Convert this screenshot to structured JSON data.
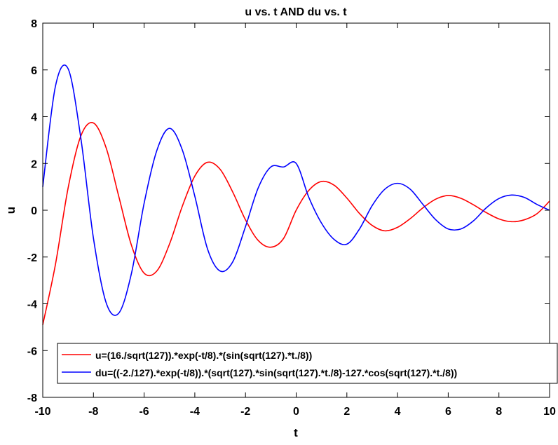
{
  "chart_data": {
    "type": "line",
    "title": "u vs. t AND du vs. t",
    "xlabel": "t",
    "ylabel": "u",
    "xlim": [
      -10,
      10
    ],
    "ylim": [
      -8,
      8
    ],
    "xticks": [
      -10,
      -8,
      -6,
      -4,
      -2,
      0,
      2,
      4,
      6,
      8,
      10
    ],
    "yticks": [
      -8,
      -6,
      -4,
      -2,
      0,
      2,
      4,
      6,
      8
    ],
    "xtick_labels": [
      "-10",
      "-8",
      "-6",
      "-4",
      "-2",
      "0",
      "2",
      "4",
      "6",
      "8",
      "10"
    ],
    "ytick_labels": [
      "-8",
      "-6",
      "-4",
      "-2",
      "0",
      "2",
      "4",
      "6",
      "8"
    ],
    "grid": false,
    "legend_position": "bottom",
    "x": [
      -10.0,
      -9.5,
      -9.0,
      -8.5,
      -8.0,
      -7.5,
      -7.0,
      -6.5,
      -6.0,
      -5.5,
      -5.0,
      -4.5,
      -4.0,
      -3.5,
      -3.0,
      -2.5,
      -2.0,
      -1.5,
      -1.0,
      -0.5,
      0.0,
      0.5,
      1.0,
      1.5,
      2.0,
      2.5,
      3.0,
      3.5,
      4.0,
      4.5,
      5.0,
      5.5,
      6.0,
      6.5,
      7.0,
      7.5,
      8.0,
      8.5,
      9.0,
      9.5,
      10.0
    ],
    "series": [
      {
        "name": "u=(16./sqrt(127)).*exp(-t/8).*(sin(sqrt(127).*t./8))",
        "color": "#ff0000",
        "values": [
          -4.9,
          -2.32,
          0.95,
          3.17,
          3.73,
          2.67,
          0.59,
          -1.5,
          -2.69,
          -2.6,
          -1.45,
          0.15,
          1.46,
          2.05,
          1.75,
          0.77,
          -0.41,
          -1.29,
          -1.58,
          -1.21,
          0.0,
          0.85,
          1.23,
          1.07,
          0.52,
          -0.14,
          -0.65,
          -0.88,
          -0.73,
          -0.36,
          0.1,
          0.47,
          0.63,
          0.51,
          0.23,
          -0.1,
          -0.37,
          -0.49,
          -0.41,
          -0.15,
          0.39
        ]
      },
      {
        "name": "du=((-2./127).*exp(-t/8)).*(sqrt(127).*sin(sqrt(127).*t./8)-127.*cos(sqrt(127).*t./8))",
        "color": "#0000ff",
        "values": [
          1.0,
          5.3,
          6.05,
          3.1,
          -1.2,
          -3.95,
          -4.4,
          -2.7,
          0.3,
          2.55,
          3.5,
          2.6,
          0.6,
          -1.65,
          -2.6,
          -2.2,
          -0.7,
          0.95,
          1.85,
          1.85,
          2.0,
          0.55,
          -0.55,
          -1.25,
          -1.45,
          -0.8,
          0.2,
          0.9,
          1.15,
          0.9,
          0.25,
          -0.4,
          -0.8,
          -0.8,
          -0.45,
          0.1,
          0.5,
          0.65,
          0.55,
          0.25,
          0.0
        ]
      }
    ]
  }
}
